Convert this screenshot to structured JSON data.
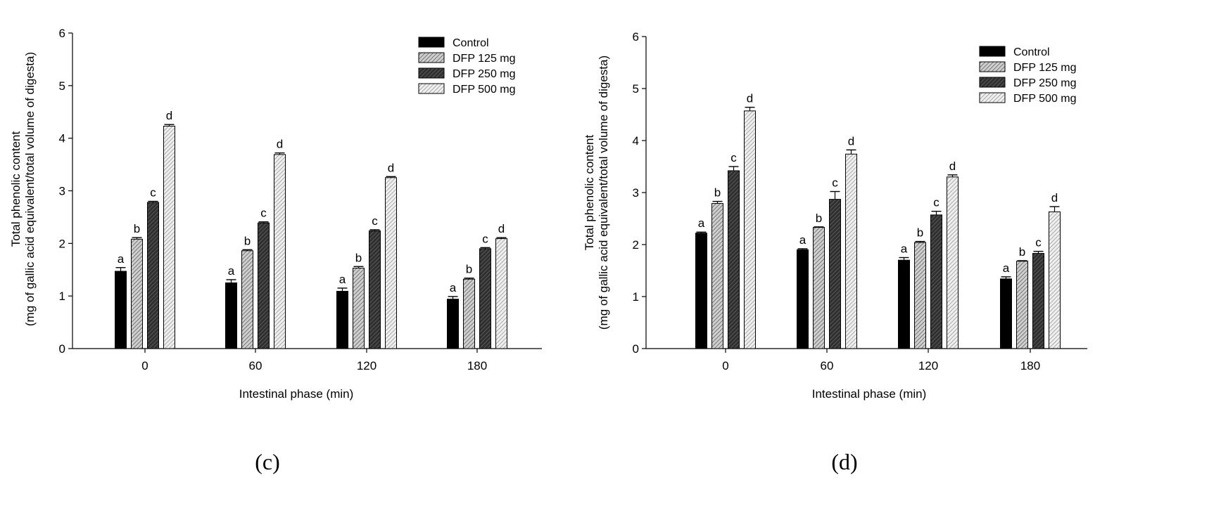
{
  "figure": {
    "panels": [
      {
        "label": "(c)"
      },
      {
        "label": "(d)"
      }
    ]
  },
  "colors": {
    "control": "#000000",
    "dfp125": "#a8a8a8",
    "dfp250": "#4a4a4a",
    "dfp500": "#d9d9d9",
    "axis": "#000000"
  },
  "chart_data": [
    {
      "type": "bar",
      "panel": "(c)",
      "title": "",
      "xlabel": "Intestinal phase (min)",
      "ylabel": [
        "Total phenolic content",
        "(mg of gallic acid equivalent/total volume of digesta)"
      ],
      "categories": [
        "0",
        "60",
        "120",
        "180"
      ],
      "ylim": [
        0,
        6
      ],
      "yticks": [
        0,
        1,
        2,
        3,
        4,
        5,
        6
      ],
      "legend_position": "top-right",
      "series": [
        {
          "name": "Control",
          "values": [
            1.47,
            1.25,
            1.09,
            0.94
          ],
          "errors": [
            0.07,
            0.06,
            0.06,
            0.05
          ],
          "letters": [
            "a",
            "a",
            "a",
            "a"
          ]
        },
        {
          "name": "DFP 125 mg",
          "values": [
            2.08,
            1.86,
            1.53,
            1.32
          ],
          "errors": [
            0.03,
            0.02,
            0.03,
            0.02
          ],
          "letters": [
            "b",
            "b",
            "b",
            "b"
          ]
        },
        {
          "name": "DFP 250 mg",
          "values": [
            2.78,
            2.39,
            2.24,
            1.9
          ],
          "errors": [
            0.02,
            0.02,
            0.02,
            0.02
          ],
          "letters": [
            "c",
            "c",
            "c",
            "c"
          ]
        },
        {
          "name": "DFP 500 mg",
          "values": [
            4.23,
            3.69,
            3.25,
            2.09
          ],
          "errors": [
            0.03,
            0.03,
            0.02,
            0.02
          ],
          "letters": [
            "d",
            "d",
            "d",
            "d"
          ]
        }
      ]
    },
    {
      "type": "bar",
      "panel": "(d)",
      "title": "",
      "xlabel": "Intestinal phase (min)",
      "ylabel": [
        "Total phenolic content",
        "(mg of gallic acid equivalent/total volume of digesta)"
      ],
      "categories": [
        "0",
        "60",
        "120",
        "180"
      ],
      "ylim": [
        0,
        6
      ],
      "yticks": [
        0,
        1,
        2,
        3,
        4,
        5,
        6
      ],
      "legend_position": "top-right",
      "series": [
        {
          "name": "Control",
          "values": [
            2.22,
            1.9,
            1.7,
            1.34
          ],
          "errors": [
            0.02,
            0.02,
            0.05,
            0.04
          ],
          "letters": [
            "a",
            "a",
            "a",
            "a"
          ]
        },
        {
          "name": "DFP 125 mg",
          "values": [
            2.79,
            2.33,
            2.04,
            1.68
          ],
          "errors": [
            0.04,
            0.01,
            0.02,
            0.01
          ],
          "letters": [
            "b",
            "b",
            "b",
            "b"
          ]
        },
        {
          "name": "DFP 250 mg",
          "values": [
            3.42,
            2.87,
            2.57,
            1.83
          ],
          "errors": [
            0.08,
            0.15,
            0.07,
            0.04
          ],
          "letters": [
            "c",
            "c",
            "c",
            "c"
          ]
        },
        {
          "name": "DFP 500 mg",
          "values": [
            4.57,
            3.74,
            3.3,
            2.63
          ],
          "errors": [
            0.07,
            0.08,
            0.04,
            0.1
          ],
          "letters": [
            "d",
            "d",
            "d",
            "d"
          ]
        }
      ]
    }
  ]
}
